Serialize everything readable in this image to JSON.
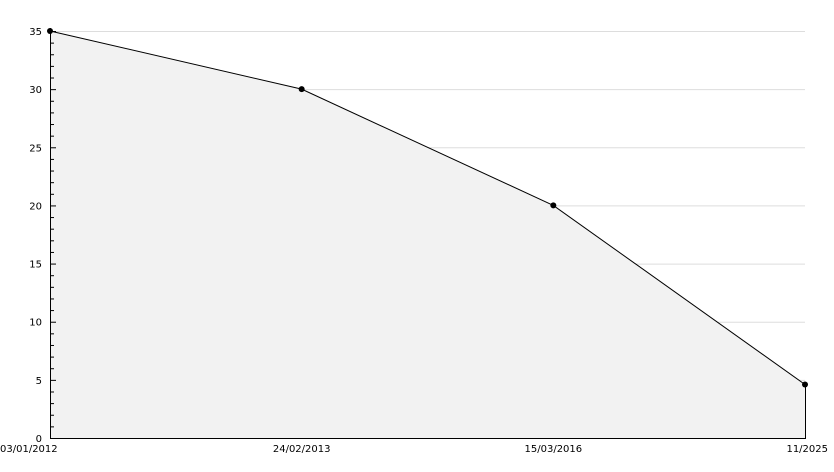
{
  "chart_data": {
    "type": "area",
    "title": "",
    "xlabel": "",
    "ylabel": "",
    "categories": [
      "03/01/2012",
      "24/02/2013",
      "15/03/2016",
      "11/2025"
    ],
    "values": [
      35,
      30,
      20,
      4.6
    ],
    "ylim": [
      0,
      35
    ],
    "y_major_ticks": [
      0,
      5,
      10,
      15,
      20,
      25,
      30,
      35
    ],
    "y_minor_step": 1,
    "grid": true,
    "legend": "none",
    "colors": {
      "line": "#000000",
      "fill": "#f2f2f2",
      "grid": "#dddddd",
      "marker": "#000000"
    }
  }
}
